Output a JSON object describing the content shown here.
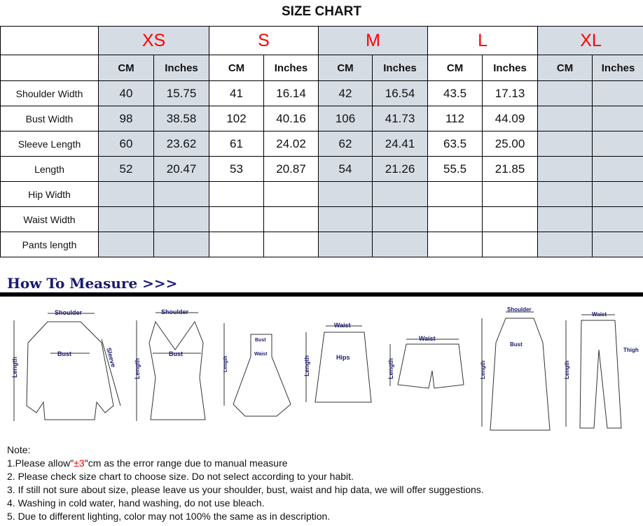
{
  "title": "SIZE CHART",
  "sizes": [
    "XS",
    "S",
    "M",
    "L",
    "XL"
  ],
  "units": [
    "CM",
    "Inches"
  ],
  "rows": [
    {
      "label": "Shoulder Width",
      "values": [
        "40",
        "15.75",
        "41",
        "16.14",
        "42",
        "16.54",
        "43.5",
        "17.13",
        "",
        ""
      ]
    },
    {
      "label": "Bust Width",
      "values": [
        "98",
        "38.58",
        "102",
        "40.16",
        "106",
        "41.73",
        "112",
        "44.09",
        "",
        ""
      ]
    },
    {
      "label": "Sleeve Length",
      "values": [
        "60",
        "23.62",
        "61",
        "24.02",
        "62",
        "24.41",
        "63.5",
        "25.00",
        "",
        ""
      ]
    },
    {
      "label": "Length",
      "values": [
        "52",
        "20.47",
        "53",
        "20.87",
        "54",
        "21.26",
        "55.5",
        "21.85",
        "",
        ""
      ]
    },
    {
      "label": "Hip Width",
      "values": [
        "",
        "",
        "",
        "",
        "",
        "",
        "",
        "",
        "",
        ""
      ]
    },
    {
      "label": "Waist Width",
      "values": [
        "",
        "",
        "",
        "",
        "",
        "",
        "",
        "",
        "",
        ""
      ]
    },
    {
      "label": "Pants length",
      "values": [
        "",
        "",
        "",
        "",
        "",
        "",
        "",
        "",
        "",
        ""
      ]
    }
  ],
  "colors": {
    "shaded": "#d6dce4",
    "size_label": "#ff0000",
    "heading": "#1a1a70"
  },
  "how_to_measure": "How To Measure >>>",
  "figure_labels": {
    "shoulder": "Shoulder",
    "bust": "Bust",
    "sleeve": "Sleeve",
    "length": "Length",
    "waist": "Waist",
    "hips": "Hips",
    "thigh": "Thigh"
  },
  "notes": {
    "heading": "Note:",
    "n1_pre": "1.Please allow\"",
    "n1_red": "±3",
    "n1_post": "\"cm as the error range due to manual measure",
    "n2": "2. Please check size chart to choose size. Do not select according to your habit.",
    "n3": "3. If still not sure about size, please leave us your shoulder, bust, waist and hip data, we will offer suggestions.",
    "n4": "4. Washing in cold water, hand washing, do not use bleach.",
    "n5": "5. Due to different lighting, color may not 100% the same as in description."
  }
}
